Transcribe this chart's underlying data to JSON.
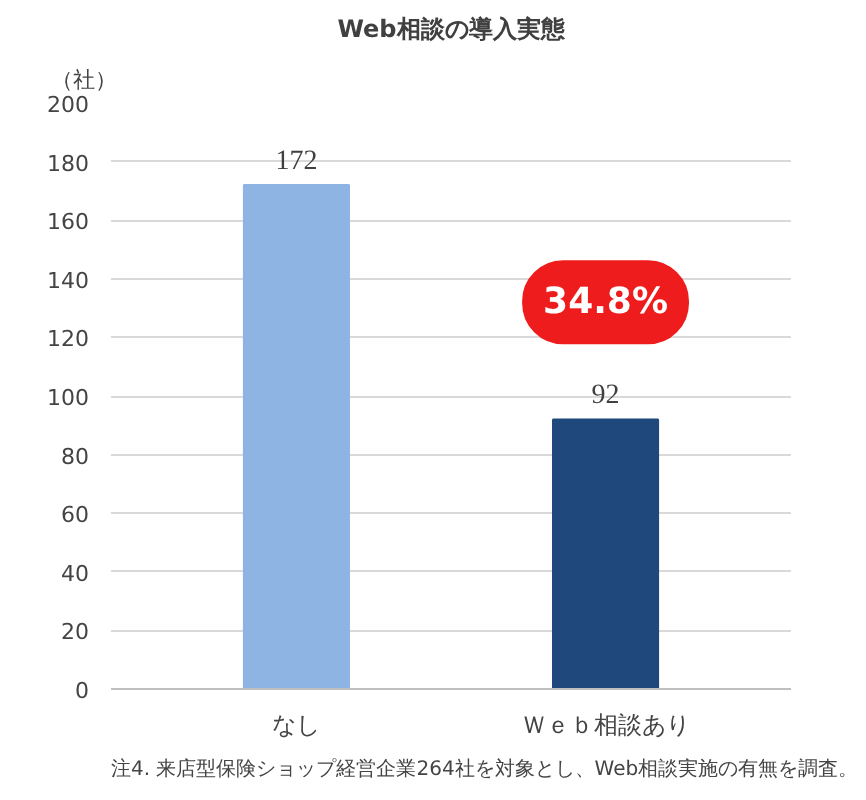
{
  "chart_data": {
    "type": "bar",
    "title": "Web相談の導入実態",
    "ylabel": "（社）",
    "categories": [
      "なし",
      "Ｗｅｂ相談あり"
    ],
    "values": [
      172,
      92
    ],
    "colors": [
      "#8db4e2",
      "#1f497d"
    ],
    "ylim": [
      0,
      200
    ],
    "yticks": [
      0,
      20,
      40,
      60,
      80,
      100,
      120,
      140,
      160,
      180,
      200
    ],
    "grid": "y",
    "data_labels": true,
    "annotations": [
      "34.8%",
      "注4.  来店型保険ショップ経営企業264社を対象とし、Web相談実施の有無を調査。"
    ]
  }
}
